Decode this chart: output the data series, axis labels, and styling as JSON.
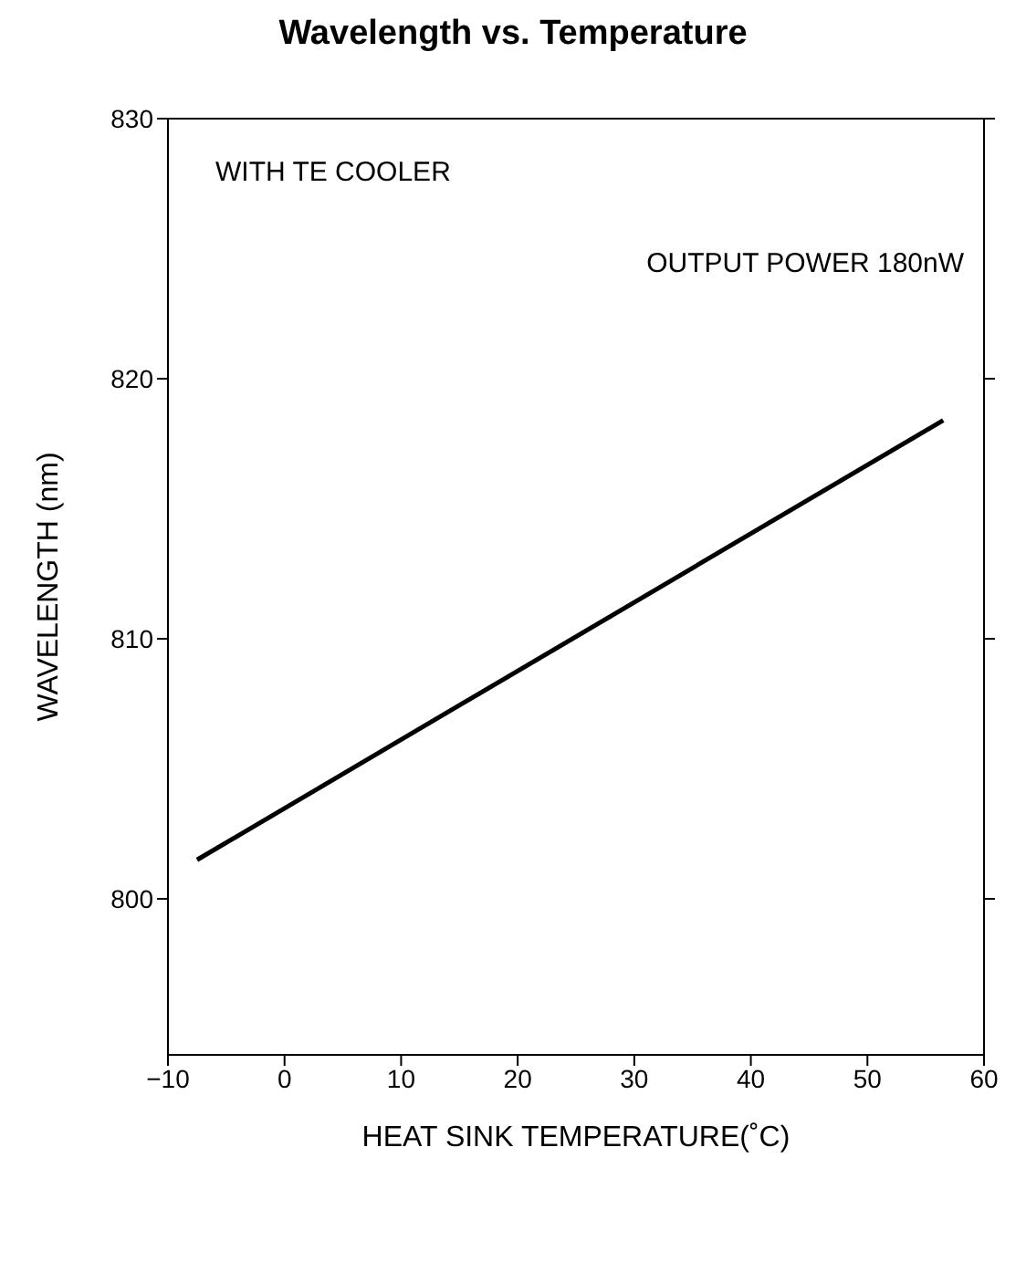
{
  "chart_data": {
    "type": "line",
    "title": "Wavelength vs. Temperature",
    "xlabel": "HEAT SINK TEMPERATURE(˚C)",
    "ylabel": "WAVELENGTH (nm)",
    "annotations": [
      "WITH TE COOLER",
      "OUTPUT POWER 180nW"
    ],
    "x": [
      -7.5,
      56.5
    ],
    "series": [
      {
        "color": "#000000",
        "values": [
          801.5,
          818.4
        ]
      }
    ],
    "xlim": [
      -10,
      60
    ],
    "xticks": [
      {
        "value": -10,
        "label": "−10"
      },
      0,
      10,
      20,
      30,
      40,
      50,
      60
    ],
    "ylim": [
      794,
      830
    ],
    "yticks": [
      800,
      810,
      820,
      830
    ],
    "grid": false,
    "marker": "none",
    "line_style": "solid"
  }
}
